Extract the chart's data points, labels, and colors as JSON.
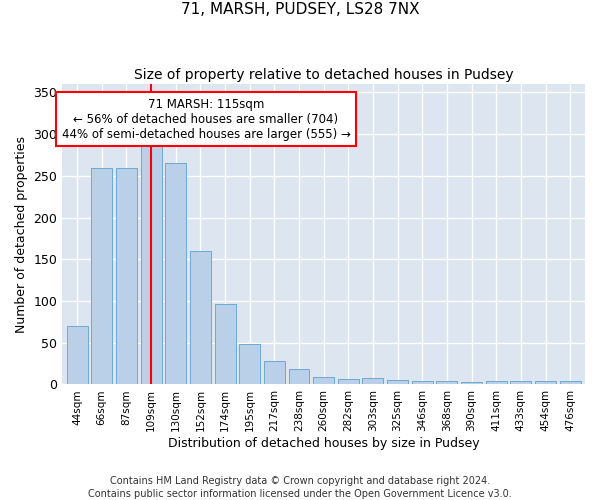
{
  "title1": "71, MARSH, PUDSEY, LS28 7NX",
  "title2": "Size of property relative to detached houses in Pudsey",
  "xlabel": "Distribution of detached houses by size in Pudsey",
  "ylabel": "Number of detached properties",
  "categories": [
    "44sqm",
    "66sqm",
    "87sqm",
    "109sqm",
    "130sqm",
    "152sqm",
    "174sqm",
    "195sqm",
    "217sqm",
    "238sqm",
    "260sqm",
    "282sqm",
    "303sqm",
    "325sqm",
    "346sqm",
    "368sqm",
    "390sqm",
    "411sqm",
    "433sqm",
    "454sqm",
    "476sqm"
  ],
  "values": [
    70,
    260,
    260,
    292,
    265,
    160,
    97,
    48,
    28,
    18,
    9,
    6,
    8,
    5,
    4,
    4,
    3,
    4,
    4,
    4,
    4
  ],
  "bar_color": "#bad0e8",
  "bar_edge_color": "#6aaad4",
  "vline_x": 3.0,
  "vline_color": "red",
  "annotation_text": "71 MARSH: 115sqm\n← 56% of detached houses are smaller (704)\n44% of semi-detached houses are larger (555) →",
  "annotation_box_color": "white",
  "annotation_box_edge": "red",
  "ylim": [
    0,
    360
  ],
  "yticks": [
    0,
    50,
    100,
    150,
    200,
    250,
    300,
    350
  ],
  "background_color": "#dde6f0",
  "footnote": "Contains HM Land Registry data © Crown copyright and database right 2024.\nContains public sector information licensed under the Open Government Licence v3.0.",
  "title1_fontsize": 11,
  "title2_fontsize": 10,
  "xlabel_fontsize": 9,
  "ylabel_fontsize": 9,
  "annotation_fontsize": 8.5,
  "footnote_fontsize": 7,
  "fig_width": 6.0,
  "fig_height": 5.0
}
